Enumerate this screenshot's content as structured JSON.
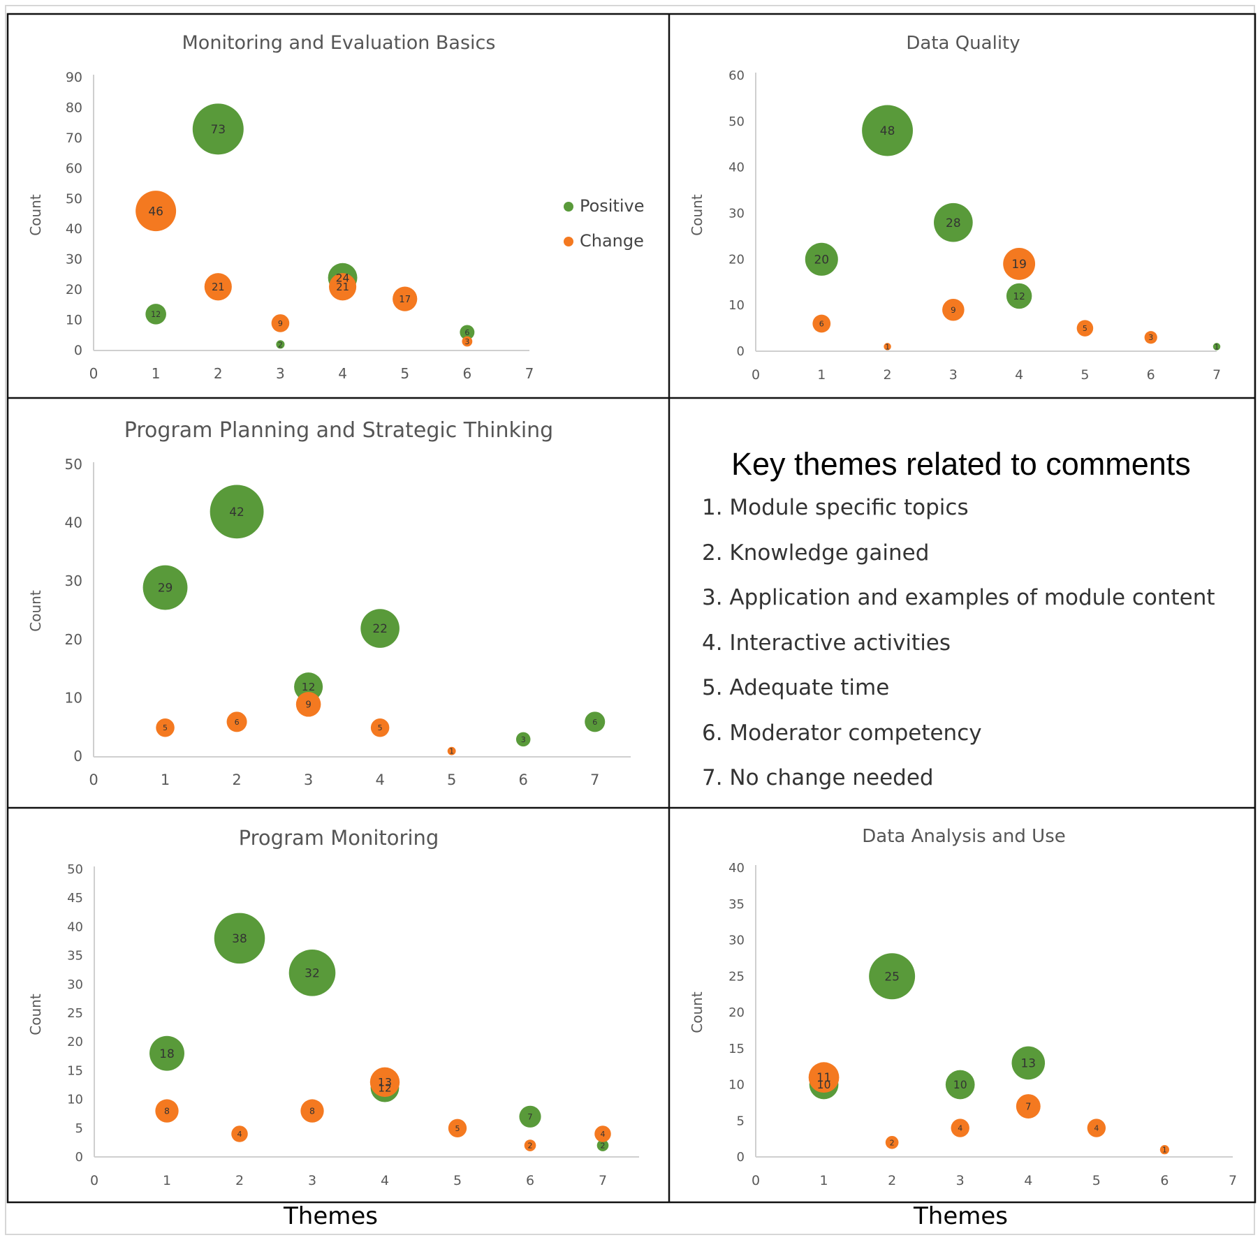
{
  "colors": {
    "positive": "#599a3a",
    "change": "#f47920",
    "axis": "#cfcfcf",
    "tick": "#595959",
    "title": "#555555"
  },
  "legend": {
    "positive": "Positive",
    "change": "Change"
  },
  "key": {
    "title": "Key themes related to comments",
    "items": [
      "1. Module specific topics",
      "2. Knowledge gained",
      "3. Application and examples of module content",
      "4. Interactive activities",
      "5. Adequate time",
      "6. Moderator competency",
      "7. No change needed"
    ]
  },
  "x_caption_left": "Themes",
  "x_caption_right": "Themes",
  "chart_data": [
    {
      "type": "scatter",
      "title": "Monitoring and Evaluation  Basics",
      "ylabel": "Count",
      "xlim": [
        0,
        7
      ],
      "ylim": [
        0,
        90
      ],
      "xticks": [
        0,
        1,
        2,
        3,
        4,
        5,
        6,
        7
      ],
      "yticks": [
        0,
        10,
        20,
        30,
        40,
        50,
        60,
        70,
        80,
        90
      ],
      "legend": "right",
      "series": [
        {
          "name": "Positive",
          "points": [
            {
              "x": 1,
              "y": 12
            },
            {
              "x": 2,
              "y": 73
            },
            {
              "x": 3,
              "y": 2
            },
            {
              "x": 4,
              "y": 24
            },
            {
              "x": 6,
              "y": 6
            }
          ]
        },
        {
          "name": "Change",
          "points": [
            {
              "x": 1,
              "y": 46
            },
            {
              "x": 2,
              "y": 21
            },
            {
              "x": 3,
              "y": 9
            },
            {
              "x": 4,
              "y": 21
            },
            {
              "x": 5,
              "y": 17
            },
            {
              "x": 6,
              "y": 3
            }
          ]
        }
      ]
    },
    {
      "type": "scatter",
      "title": "Data Quality",
      "ylabel": "Count",
      "xlim": [
        0,
        7
      ],
      "ylim": [
        0,
        60
      ],
      "xticks": [
        0,
        1,
        2,
        3,
        4,
        5,
        6,
        7
      ],
      "yticks": [
        0,
        10,
        20,
        30,
        40,
        50,
        60
      ],
      "series": [
        {
          "name": "Positive",
          "points": [
            {
              "x": 1,
              "y": 20
            },
            {
              "x": 2,
              "y": 48
            },
            {
              "x": 3,
              "y": 28
            },
            {
              "x": 4,
              "y": 12
            },
            {
              "x": 7,
              "y": 1
            }
          ]
        },
        {
          "name": "Change",
          "points": [
            {
              "x": 1,
              "y": 6
            },
            {
              "x": 2,
              "y": 1
            },
            {
              "x": 3,
              "y": 9
            },
            {
              "x": 4,
              "y": 19
            },
            {
              "x": 5,
              "y": 5
            },
            {
              "x": 6,
              "y": 3
            }
          ]
        }
      ]
    },
    {
      "type": "scatter",
      "title": "Program Planning and Strategic Thinking",
      "ylabel": "Count",
      "xlim": [
        0,
        7.5
      ],
      "ylim": [
        0,
        50
      ],
      "xticks": [
        0,
        1,
        2,
        3,
        4,
        5,
        6,
        7
      ],
      "yticks": [
        0,
        10,
        20,
        30,
        40,
        50
      ],
      "series": [
        {
          "name": "Positive",
          "points": [
            {
              "x": 1,
              "y": 29
            },
            {
              "x": 2,
              "y": 42
            },
            {
              "x": 3,
              "y": 12
            },
            {
              "x": 4,
              "y": 22
            },
            {
              "x": 6,
              "y": 3
            },
            {
              "x": 7,
              "y": 6
            }
          ]
        },
        {
          "name": "Change",
          "points": [
            {
              "x": 1,
              "y": 5
            },
            {
              "x": 2,
              "y": 6
            },
            {
              "x": 3,
              "y": 9
            },
            {
              "x": 4,
              "y": 5
            },
            {
              "x": 5,
              "y": 1
            }
          ]
        }
      ]
    },
    {
      "type": "scatter",
      "title": "Program Monitoring",
      "ylabel": "Count",
      "xlim": [
        0,
        7.5
      ],
      "ylim": [
        0,
        50
      ],
      "xticks": [
        0,
        1,
        2,
        3,
        4,
        5,
        6,
        7
      ],
      "yticks": [
        0,
        5,
        10,
        15,
        20,
        25,
        30,
        35,
        40,
        45,
        50
      ],
      "series": [
        {
          "name": "Positive",
          "points": [
            {
              "x": 1,
              "y": 18
            },
            {
              "x": 2,
              "y": 38
            },
            {
              "x": 3,
              "y": 32
            },
            {
              "x": 4,
              "y": 12
            },
            {
              "x": 6,
              "y": 7
            },
            {
              "x": 7,
              "y": 2
            }
          ]
        },
        {
          "name": "Change",
          "points": [
            {
              "x": 1,
              "y": 8
            },
            {
              "x": 2,
              "y": 4
            },
            {
              "x": 3,
              "y": 8
            },
            {
              "x": 4,
              "y": 13
            },
            {
              "x": 5,
              "y": 5
            },
            {
              "x": 6,
              "y": 2
            },
            {
              "x": 7,
              "y": 4
            }
          ]
        }
      ]
    },
    {
      "type": "scatter",
      "title": "Data Analysis and Use",
      "ylabel": "Count",
      "xlim": [
        0,
        7
      ],
      "ylim": [
        0,
        40
      ],
      "xticks": [
        0,
        1,
        2,
        3,
        4,
        5,
        6,
        7
      ],
      "yticks": [
        0,
        5,
        10,
        15,
        20,
        25,
        30,
        35,
        40
      ],
      "series": [
        {
          "name": "Positive",
          "points": [
            {
              "x": 1,
              "y": 10
            },
            {
              "x": 2,
              "y": 25
            },
            {
              "x": 3,
              "y": 10
            },
            {
              "x": 4,
              "y": 13
            }
          ]
        },
        {
          "name": "Change",
          "points": [
            {
              "x": 1,
              "y": 11
            },
            {
              "x": 2,
              "y": 2
            },
            {
              "x": 3,
              "y": 4
            },
            {
              "x": 4,
              "y": 7
            },
            {
              "x": 5,
              "y": 4
            },
            {
              "x": 6,
              "y": 1
            }
          ]
        }
      ]
    }
  ]
}
